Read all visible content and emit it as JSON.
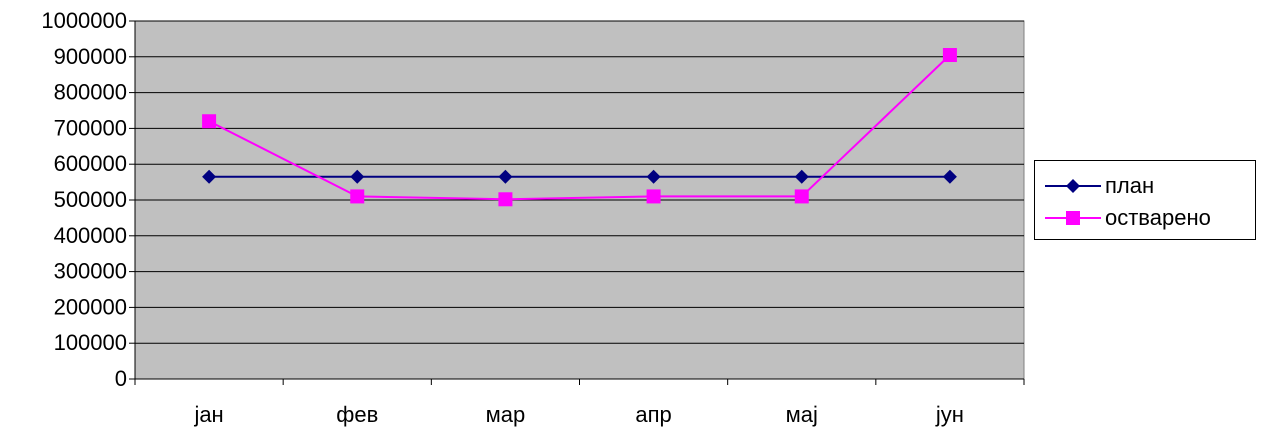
{
  "chart_data": {
    "type": "line",
    "categories": [
      "јан",
      "фев",
      "мар",
      "апр",
      "мај",
      "јун"
    ],
    "series": [
      {
        "name": "план",
        "values": [
          565000,
          565000,
          565000,
          565000,
          565000,
          565000
        ],
        "color": "#000080",
        "marker": "diamond"
      },
      {
        "name": "остварено",
        "values": [
          720000,
          510000,
          502000,
          510000,
          510000,
          905000
        ],
        "color": "#FF00FF",
        "marker": "square"
      }
    ],
    "title": "",
    "xlabel": "",
    "ylabel": "",
    "ylim": [
      0,
      1000000
    ],
    "yticks": [
      "0",
      "100000",
      "200000",
      "300000",
      "400000",
      "500000",
      "600000",
      "700000",
      "800000",
      "900000",
      "1000000"
    ],
    "grid": true,
    "plot_background": "#C0C0C0",
    "legend_position": "right"
  }
}
